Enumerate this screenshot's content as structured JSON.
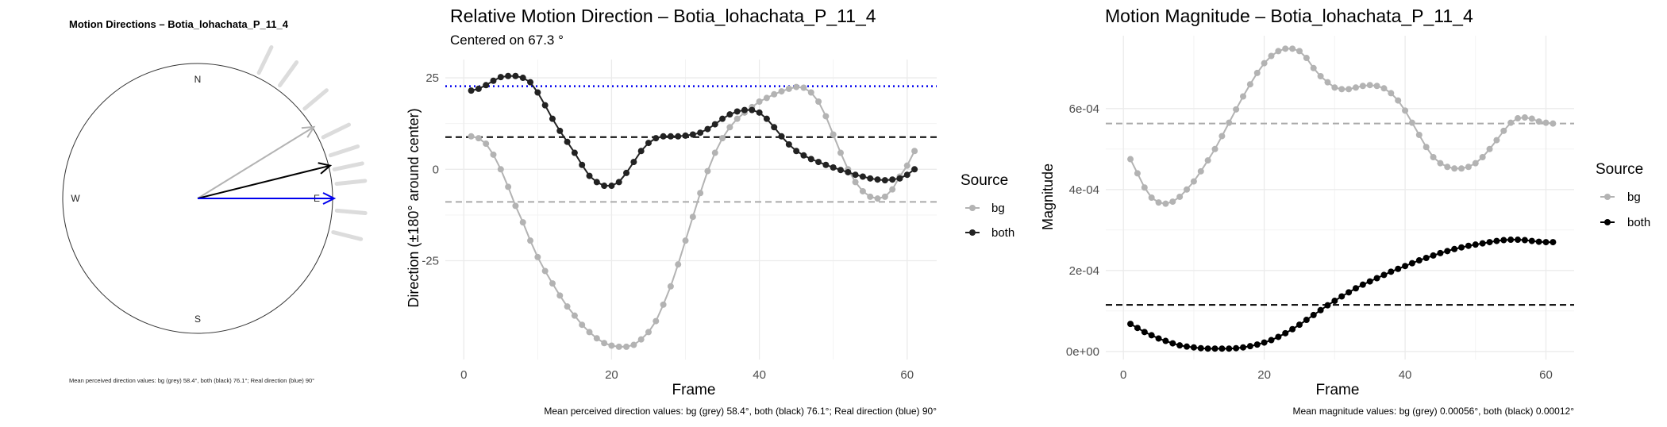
{
  "colors": {
    "bg": "#b3b3b3",
    "both": "#222222",
    "real": "#0000ee",
    "grid": "#ebebeb",
    "ray": "#dcdcdc"
  },
  "chart_data": [
    {
      "type": "polar-compass",
      "title": "Motion Directions – Botia_lohachata_P_11_4",
      "compass": {
        "N": "N",
        "E": "E",
        "S": "S",
        "W": "W"
      },
      "arrows": [
        {
          "name": "bg",
          "angle_deg": 58.4,
          "color": "#b3b3b3"
        },
        {
          "name": "both",
          "angle_deg": 76.1,
          "color": "#000000"
        },
        {
          "name": "real",
          "angle_deg": 90,
          "color": "#0000ee"
        }
      ],
      "rays_deg": [
        26,
        36,
        50,
        64,
        72,
        78,
        84,
        95,
        104
      ],
      "caption": "Mean perceived direction values: bg (grey) 58.4°, both (black) 76.1°; Real direction (blue) 90°"
    },
    {
      "type": "line",
      "title": "Relative Motion Direction – Botia_lohachata_P_11_4",
      "subtitle": "Centered on  67.3 °",
      "xlabel": "Frame",
      "ylabel": "Direction (±180° around center)",
      "xlim": [
        -2.5,
        64
      ],
      "ylim": [
        -52,
        30
      ],
      "xticks": [
        0,
        20,
        40,
        60
      ],
      "yticks": [
        25,
        0,
        -25
      ],
      "hlines": [
        {
          "y": 22.7,
          "color": "#0000ee",
          "style": "dotted"
        },
        {
          "y": 8.8,
          "color": "#000000",
          "style": "dashed"
        },
        {
          "y": -8.9,
          "color": "#aaaaaa",
          "style": "dashed"
        }
      ],
      "legend": {
        "title": "Source",
        "position": "right",
        "entries": [
          "bg",
          "both"
        ]
      },
      "caption": "Mean perceived direction values: bg (grey) 58.4°, both (black) 76.1°; Real direction (blue) 90°",
      "x": [
        1,
        2,
        3,
        4,
        5,
        6,
        7,
        8,
        9,
        10,
        11,
        12,
        13,
        14,
        15,
        16,
        17,
        18,
        19,
        20,
        21,
        22,
        23,
        24,
        25,
        26,
        27,
        28,
        29,
        30,
        31,
        32,
        33,
        34,
        35,
        36,
        37,
        38,
        39,
        40,
        41,
        42,
        43,
        44,
        45,
        46,
        47,
        48,
        49,
        50,
        51,
        52,
        53,
        54,
        55,
        56,
        57,
        58,
        59,
        60,
        61
      ],
      "series": [
        {
          "name": "bg",
          "values": [
            9,
            8.5,
            7,
            4,
            0,
            -4.8,
            -10,
            -14.5,
            -19.5,
            -24,
            -27.8,
            -31.2,
            -34.5,
            -37.5,
            -40,
            -42.5,
            -44.5,
            -46.2,
            -47.5,
            -48.2,
            -48.5,
            -48.5,
            -48,
            -46.5,
            -44.5,
            -41.5,
            -37,
            -32,
            -26,
            -19.5,
            -13,
            -6.5,
            -0.5,
            4.5,
            8.5,
            11.5,
            13.8,
            15.5,
            17,
            18.5,
            19.5,
            20.5,
            21.3,
            22,
            22.5,
            22.3,
            21,
            18.5,
            14.5,
            9.5,
            4.5,
            0,
            -3.5,
            -6,
            -7.5,
            -8,
            -7.5,
            -5.5,
            -2,
            1,
            5
          ]
        },
        {
          "name": "both",
          "values": [
            21.5,
            22,
            23,
            24.2,
            25.2,
            25.5,
            25.5,
            25,
            23.8,
            21,
            17.5,
            13.8,
            10.5,
            7.5,
            4.5,
            1.2,
            -1.8,
            -3.5,
            -4.5,
            -4.5,
            -3.5,
            -1,
            2,
            5,
            7.2,
            8.5,
            9,
            9,
            9,
            9.2,
            9.5,
            10,
            11,
            12.3,
            13.8,
            15,
            15.8,
            16.2,
            16.2,
            15.5,
            13.8,
            11.5,
            9,
            6.8,
            5,
            3.8,
            2.8,
            2,
            1.2,
            0.5,
            -0.2,
            -0.8,
            -1.5,
            -2,
            -2.5,
            -2.8,
            -3,
            -2.8,
            -2.5,
            -1.5,
            0
          ]
        }
      ]
    },
    {
      "type": "line",
      "title": "Motion Magnitude – Botia_lohachata_P_11_4",
      "xlabel": "Frame",
      "ylabel": "Magnitude",
      "xlim": [
        -2.5,
        64
      ],
      "ylim": [
        -2e-05,
        0.00078
      ],
      "xticks": [
        0,
        20,
        40,
        60
      ],
      "yticks": [
        0,
        0.0002,
        0.0004,
        0.0006
      ],
      "ytick_labels": [
        "0e+00",
        "2e-04",
        "4e-04",
        "6e-04"
      ],
      "hlines": [
        {
          "y": 0.000563,
          "color": "#aaaaaa",
          "style": "dashed"
        },
        {
          "y": 0.000115,
          "color": "#000000",
          "style": "dashed"
        }
      ],
      "legend": {
        "title": "Source",
        "position": "right",
        "entries": [
          "bg",
          "both"
        ]
      },
      "caption": "Mean magnitude values: bg (grey) 0.00056°, both (black) 0.00012°",
      "x": [
        1,
        2,
        3,
        4,
        5,
        6,
        7,
        8,
        9,
        10,
        11,
        12,
        13,
        14,
        15,
        16,
        17,
        18,
        19,
        20,
        21,
        22,
        23,
        24,
        25,
        26,
        27,
        28,
        29,
        30,
        31,
        32,
        33,
        34,
        35,
        36,
        37,
        38,
        39,
        40,
        41,
        42,
        43,
        44,
        45,
        46,
        47,
        48,
        49,
        50,
        51,
        52,
        53,
        54,
        55,
        56,
        57,
        58,
        59,
        60,
        61
      ],
      "series": [
        {
          "name": "bg",
          "values": [
            0.000475,
            0.00044,
            0.000405,
            0.00038,
            0.000368,
            0.000365,
            0.00037,
            0.000382,
            0.0004,
            0.00042,
            0.000445,
            0.000472,
            0.0005,
            0.000532,
            0.000565,
            0.000598,
            0.00063,
            0.00066,
            0.000688,
            0.000712,
            0.00073,
            0.000742,
            0.000748,
            0.000748,
            0.000742,
            0.000725,
            0.0007,
            0.00068,
            0.000665,
            0.000652,
            0.000648,
            0.000648,
            0.000652,
            0.000656,
            0.000658,
            0.000656,
            0.00065,
            0.000638,
            0.00062,
            0.000595,
            0.000565,
            0.000535,
            0.000505,
            0.00048,
            0.000465,
            0.000456,
            0.000452,
            0.000452,
            0.000456,
            0.000465,
            0.00048,
            0.0005,
            0.000522,
            0.000545,
            0.000565,
            0.000576,
            0.000578,
            0.000575,
            0.000568,
            0.000565,
            0.000563
          ]
        },
        {
          "name": "both",
          "values": [
            6.8e-05,
            5.8e-05,
            4.8e-05,
            4e-05,
            3.2e-05,
            2.6e-05,
            2e-05,
            1.5e-05,
            1.2e-05,
            1e-05,
            8e-06,
            7e-06,
            7e-06,
            7e-06,
            7e-06,
            8e-06,
            1e-05,
            1.3e-05,
            1.7e-05,
            2.2e-05,
            2.8e-05,
            3.6e-05,
            4.5e-05,
            5.5e-05,
            6.6e-05,
            7.8e-05,
            9e-05,
            0.000102,
            0.000114,
            0.000125,
            0.000136,
            0.000146,
            0.000156,
            0.000165,
            0.000173,
            0.000181,
            0.000189,
            0.000197,
            0.000204,
            0.000211,
            0.000218,
            0.000225,
            0.000231,
            0.000237,
            0.000243,
            0.000248,
            0.000253,
            0.000257,
            0.000261,
            0.000264,
            0.000267,
            0.00027,
            0.000273,
            0.000275,
            0.000276,
            0.000276,
            0.000275,
            0.000273,
            0.000271,
            0.00027,
            0.00027
          ]
        }
      ]
    }
  ]
}
